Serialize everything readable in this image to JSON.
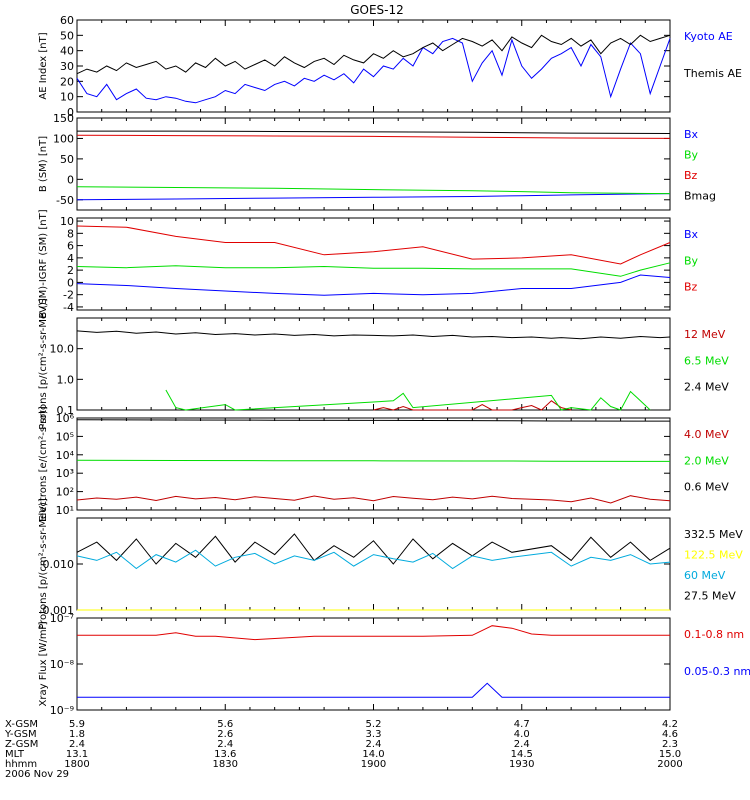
{
  "title": "GOES-12",
  "date": "2006 Nov 29",
  "ephemeris": {
    "rows": [
      {
        "label": "X-GSM",
        "values": [
          "5.9",
          "5.6",
          "5.2",
          "4.7",
          "4.2"
        ]
      },
      {
        "label": "Y-GSM",
        "values": [
          "1.8",
          "2.6",
          "3.3",
          "4.0",
          "4.6"
        ]
      },
      {
        "label": "Z-GSM",
        "values": [
          "2.4",
          "2.4",
          "2.4",
          "2.4",
          "2.3"
        ]
      },
      {
        "label": "MLT",
        "values": [
          "13.1",
          "13.6",
          "14.0",
          "14.5",
          "15.0"
        ]
      },
      {
        "label": "hhmm",
        "values": [
          "1800",
          "1830",
          "1900",
          "1930",
          "2000"
        ]
      }
    ]
  },
  "colors": {
    "black": "#000000",
    "blue": "#0000ff",
    "red": "#e00000",
    "green": "#00dd00",
    "yellow": "#ffff00",
    "cyan": "#00aadd",
    "darkred": "#c00000"
  },
  "chart_data": [
    {
      "type": "line",
      "ylabel": "AE Index [nT]",
      "scale": "linear",
      "ylim": [
        0,
        60
      ],
      "ticks": [
        "0",
        "10",
        "20",
        "30",
        "40",
        "50",
        "60"
      ],
      "series": [
        {
          "name": "Kyoto AE",
          "color": "#0000ff",
          "x": [
            0,
            2,
            4,
            6,
            8,
            10,
            12,
            14,
            16,
            18,
            20,
            22,
            24,
            26,
            28,
            30,
            32,
            34,
            36,
            38,
            40,
            42,
            44,
            46,
            48,
            50,
            52,
            54,
            56,
            58,
            60,
            62,
            64,
            66,
            68,
            70,
            72,
            74,
            76,
            78,
            80,
            82,
            84,
            86,
            88,
            90,
            92,
            94,
            96,
            98,
            100,
            102,
            104,
            106,
            108,
            110,
            112,
            114,
            116,
            118,
            120
          ],
          "values": [
            22,
            12,
            10,
            18,
            8,
            12,
            15,
            9,
            8,
            10,
            9,
            7,
            6,
            8,
            10,
            14,
            12,
            18,
            16,
            14,
            18,
            20,
            17,
            22,
            20,
            24,
            21,
            25,
            19,
            28,
            23,
            30,
            28,
            35,
            30,
            42,
            38,
            46,
            48,
            45,
            20,
            32,
            40,
            24,
            47,
            30,
            22,
            28,
            35,
            38,
            42,
            30,
            44,
            36,
            10,
            28,
            45,
            38,
            12,
            30,
            48
          ]
        },
        {
          "name": "Themis AE",
          "color": "#000000",
          "x": [
            0,
            2,
            4,
            6,
            8,
            10,
            12,
            14,
            16,
            18,
            20,
            22,
            24,
            26,
            28,
            30,
            32,
            34,
            36,
            38,
            40,
            42,
            44,
            46,
            48,
            50,
            52,
            54,
            56,
            58,
            60,
            62,
            64,
            66,
            68,
            70,
            72,
            74,
            76,
            78,
            80,
            82,
            84,
            86,
            88,
            90,
            92,
            94,
            96,
            98,
            100,
            102,
            104,
            106,
            108,
            110,
            112,
            114,
            116,
            118,
            120
          ],
          "values": [
            25,
            28,
            26,
            30,
            27,
            32,
            29,
            31,
            33,
            28,
            30,
            26,
            32,
            29,
            35,
            30,
            33,
            28,
            31,
            34,
            30,
            36,
            32,
            29,
            33,
            35,
            31,
            37,
            34,
            32,
            38,
            35,
            40,
            36,
            38,
            42,
            45,
            40,
            44,
            48,
            46,
            43,
            47,
            40,
            49,
            45,
            42,
            50,
            46,
            44,
            48,
            43,
            47,
            38,
            45,
            48,
            44,
            50,
            46,
            48,
            50
          ]
        }
      ]
    },
    {
      "type": "line",
      "ylabel": "B (SM) [nT]",
      "scale": "linear",
      "ylim": [
        -75,
        150
      ],
      "ticks": [
        "-50",
        "0",
        "50",
        "100",
        "150"
      ],
      "series": [
        {
          "name": "Bx",
          "color": "#0000ff",
          "x": [
            0,
            20,
            40,
            60,
            80,
            90,
            100,
            120
          ],
          "values": [
            -50,
            -48,
            -46,
            -44,
            -42,
            -40,
            -38,
            -35
          ]
        },
        {
          "name": "By",
          "color": "#00dd00",
          "x": [
            0,
            20,
            40,
            60,
            80,
            90,
            100,
            120
          ],
          "values": [
            -18,
            -20,
            -22,
            -25,
            -28,
            -30,
            -33,
            -35
          ]
        },
        {
          "name": "Bz",
          "color": "#e00000",
          "x": [
            0,
            20,
            40,
            60,
            80,
            90,
            100,
            120
          ],
          "values": [
            108,
            107,
            106,
            105,
            103,
            102,
            101,
            100
          ]
        },
        {
          "name": "Bmag",
          "color": "#000000",
          "x": [
            0,
            20,
            40,
            60,
            80,
            90,
            100,
            120
          ],
          "values": [
            118,
            118,
            117,
            116,
            115,
            114,
            113,
            112
          ]
        }
      ]
    },
    {
      "type": "line",
      "ylabel": "B (SM)-IGRF (SM) [nT]",
      "scale": "linear",
      "ylim": [
        -4.5,
        10.5
      ],
      "ticks": [
        "-4",
        "-2",
        "0",
        "2",
        "4",
        "6",
        "8",
        "10"
      ],
      "series": [
        {
          "name": "Bx",
          "color": "#0000ff",
          "x": [
            0,
            10,
            20,
            30,
            40,
            50,
            60,
            70,
            80,
            90,
            100,
            110,
            114,
            120
          ],
          "values": [
            -0.2,
            -0.5,
            -1.0,
            -1.4,
            -1.8,
            -2.1,
            -1.8,
            -2.0,
            -1.8,
            -1.0,
            -1.0,
            0.0,
            1.2,
            0.8
          ]
        },
        {
          "name": "By",
          "color": "#00dd00",
          "x": [
            0,
            10,
            20,
            30,
            40,
            50,
            60,
            70,
            80,
            90,
            100,
            110,
            114,
            120
          ],
          "values": [
            2.6,
            2.4,
            2.7,
            2.4,
            2.4,
            2.6,
            2.3,
            2.3,
            2.2,
            2.2,
            2.2,
            1.0,
            2.0,
            3.2
          ]
        },
        {
          "name": "Bz",
          "color": "#e00000",
          "x": [
            0,
            10,
            20,
            30,
            40,
            50,
            60,
            70,
            80,
            90,
            100,
            110,
            114,
            120
          ],
          "values": [
            9.2,
            9.0,
            7.5,
            6.5,
            6.5,
            4.5,
            5.0,
            5.8,
            3.8,
            4.0,
            4.5,
            3.0,
            4.5,
            6.5
          ]
        }
      ]
    },
    {
      "type": "line",
      "ylabel": "Protons [p/(cm²-s-sr-MeV)]",
      "scale": "log",
      "ylim": [
        0.1,
        100
      ],
      "ticks": [
        "0.1",
        "1.0",
        "10.0"
      ],
      "series": [
        {
          "name": "12 MeV",
          "color": "#c00000",
          "x": [
            60,
            62,
            64,
            66,
            68,
            80,
            82,
            84,
            88,
            90,
            92,
            94,
            96,
            98,
            100
          ],
          "values": [
            0.1,
            0.12,
            0.1,
            0.13,
            0.1,
            0.1,
            0.15,
            0.1,
            0.1,
            0.12,
            0.14,
            0.1,
            0.2,
            0.12,
            0.1
          ]
        },
        {
          "name": "6.5 MeV",
          "color": "#00dd00",
          "x": [
            18,
            20,
            22,
            30,
            32,
            64,
            66,
            68,
            96,
            98,
            100,
            104,
            106,
            108,
            110,
            112,
            114,
            116
          ],
          "values": [
            0.45,
            0.12,
            0.1,
            0.15,
            0.1,
            0.2,
            0.35,
            0.12,
            0.3,
            0.1,
            0.12,
            0.1,
            0.25,
            0.13,
            0.1,
            0.4,
            0.2,
            0.1
          ]
        },
        {
          "name": "2.4 MeV",
          "color": "#000000",
          "x": [
            0,
            4,
            8,
            12,
            16,
            20,
            24,
            28,
            32,
            36,
            40,
            44,
            48,
            52,
            56,
            60,
            64,
            68,
            72,
            76,
            80,
            84,
            88,
            92,
            96,
            98,
            102,
            106,
            110,
            114,
            118,
            120
          ],
          "values": [
            38,
            34,
            37,
            32,
            35,
            30,
            33,
            29,
            31,
            28,
            30,
            27,
            29,
            26,
            28,
            27,
            26,
            28,
            25,
            27,
            24,
            25,
            23,
            24,
            22,
            23,
            21,
            24,
            22,
            25,
            23,
            24
          ]
        }
      ]
    },
    {
      "type": "line",
      "ylabel": "Electrons [e/(cm²-s-sr)]",
      "scale": "log",
      "ylim": [
        10,
        1000000
      ],
      "ticks": [
        "10¹",
        "10²",
        "10³",
        "10⁴",
        "10⁵",
        "10⁶"
      ],
      "series": [
        {
          "name": "4.0 MeV",
          "color": "#c00000",
          "x": [
            0,
            4,
            8,
            12,
            16,
            20,
            24,
            28,
            32,
            36,
            40,
            44,
            48,
            52,
            56,
            60,
            64,
            68,
            72,
            76,
            80,
            84,
            88,
            96,
            100,
            104,
            108,
            112,
            116,
            120
          ],
          "values": [
            35,
            45,
            38,
            50,
            33,
            55,
            40,
            48,
            36,
            52,
            42,
            34,
            58,
            38,
            46,
            32,
            54,
            44,
            36,
            50,
            40,
            56,
            42,
            35,
            28,
            45,
            24,
            60,
            38,
            32
          ]
        },
        {
          "name": "2.0 MeV",
          "color": "#00dd00",
          "x": [
            0,
            20,
            40,
            60,
            80,
            88,
            96,
            120
          ],
          "values": [
            5000,
            4900,
            4800,
            4700,
            4600,
            4600,
            4500,
            4400
          ]
        },
        {
          "name": "0.6 MeV",
          "color": "#000000",
          "x": [
            0,
            20,
            40,
            60,
            80,
            88,
            96,
            120
          ],
          "values": [
            800000,
            780000,
            760000,
            740000,
            720000,
            710000,
            690000,
            680000
          ]
        }
      ]
    },
    {
      "type": "line",
      "ylabel": "Protons [p/(cm²-s-sr-MeV)]",
      "scale": "log",
      "ylim": [
        0.001,
        0.1
      ],
      "ticks": [
        "0.001",
        "0.010"
      ],
      "series": [
        {
          "name": "332.5 MeV",
          "color": "#000000",
          "x": [
            0,
            4,
            8,
            12,
            16,
            20,
            24,
            28,
            32,
            36,
            40,
            44,
            48,
            52,
            56,
            60,
            64,
            68,
            72,
            76,
            80,
            84,
            88,
            96,
            100,
            104,
            108,
            112,
            116,
            120
          ],
          "values": [
            0.018,
            0.03,
            0.012,
            0.035,
            0.01,
            0.028,
            0.014,
            0.04,
            0.011,
            0.03,
            0.016,
            0.045,
            0.012,
            0.025,
            0.014,
            0.032,
            0.01,
            0.035,
            0.013,
            0.028,
            0.015,
            0.03,
            0.018,
            0.025,
            0.012,
            0.038,
            0.014,
            0.03,
            0.012,
            0.022
          ]
        },
        {
          "name": "122.5 MeV",
          "color": "#ffff00",
          "x": [
            0,
            120
          ],
          "values": [
            0.001,
            0.001
          ]
        },
        {
          "name": "60 MeV",
          "color": "#00aadd",
          "x": [
            0,
            4,
            8,
            12,
            16,
            20,
            24,
            28,
            32,
            36,
            40,
            44,
            48,
            52,
            56,
            60,
            64,
            68,
            72,
            76,
            80,
            84,
            88,
            96,
            100,
            104,
            108,
            112,
            116,
            120
          ],
          "values": [
            0.015,
            0.012,
            0.018,
            0.008,
            0.016,
            0.011,
            0.02,
            0.009,
            0.014,
            0.017,
            0.01,
            0.015,
            0.012,
            0.018,
            0.009,
            0.016,
            0.013,
            0.011,
            0.017,
            0.008,
            0.015,
            0.012,
            0.014,
            0.018,
            0.009,
            0.014,
            0.012,
            0.016,
            0.01,
            0.011
          ]
        },
        {
          "name": "27.5 MeV",
          "color": "#000000",
          "x": [],
          "values": []
        }
      ]
    },
    {
      "type": "line",
      "ylabel": "Xray Flux [W/m²]",
      "scale": "log",
      "ylim": [
        1e-09,
        1e-07
      ],
      "ticks": [
        "10⁻⁹",
        "10⁻⁸",
        "10⁻⁷"
      ],
      "series": [
        {
          "name": "0.1-0.8 nm",
          "color": "#e00000",
          "x": [
            0,
            16,
            20,
            24,
            28,
            36,
            48,
            60,
            70,
            80,
            84,
            88,
            92,
            96,
            100,
            110,
            120
          ],
          "values": [
            4.2e-08,
            4.2e-08,
            4.8e-08,
            4e-08,
            4e-08,
            3.4e-08,
            4e-08,
            4e-08,
            4e-08,
            4.2e-08,
            6.8e-08,
            6e-08,
            4.5e-08,
            4.2e-08,
            4.2e-08,
            4.2e-08,
            4.2e-08
          ]
        },
        {
          "name": "0.05-0.3 nm",
          "color": "#0000ff",
          "x": [
            0,
            20,
            30,
            40,
            50,
            60,
            70,
            80,
            83,
            86,
            90,
            100,
            120
          ],
          "values": [
            1.9e-09,
            1.9e-09,
            1.9e-09,
            1.9e-09,
            1.9e-09,
            1.9e-09,
            1.9e-09,
            1.9e-09,
            3.8e-09,
            1.9e-09,
            1.9e-09,
            1.9e-09,
            1.9e-09
          ]
        }
      ]
    }
  ]
}
